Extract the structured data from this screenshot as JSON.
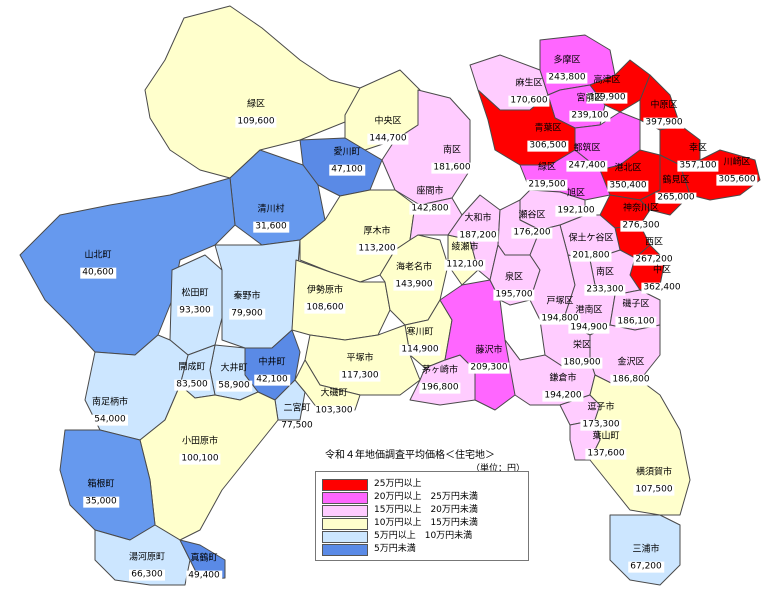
{
  "colors": {
    "over250k": "#ff0000",
    "200to250k": "#ff66ff",
    "150to200k": "#ffccff",
    "100to150k": "#ffffcc",
    "50to100k": "#6699ee",
    "50to100k_light": "#cce6ff",
    "under50k": "#5a8ae6",
    "sea": "#ffffff",
    "border": "#4a4a4a"
  },
  "legend": {
    "title": "令和４年地価調査平均価格＜住宅地＞",
    "unit": "（単位：円）",
    "items": [
      {
        "label": "25万円以上",
        "range": "",
        "color": "#ff0000"
      },
      {
        "label": "20万円以上",
        "range": "25万円未満",
        "color": "#ff66ff"
      },
      {
        "label": "15万円以上",
        "range": "20万円未満",
        "color": "#ffccff"
      },
      {
        "label": "10万円以上",
        "range": "15万円未満",
        "color": "#ffffcc"
      },
      {
        "label": "5万円以上",
        "range": "10万円未満",
        "color": "#cce6ff"
      },
      {
        "label": "5万円未満",
        "range": "",
        "color": "#5a8ae6"
      }
    ]
  },
  "areas": [
    {
      "name": "多摩区",
      "value": "243,800"
    },
    {
      "name": "麻生区",
      "value": "170,600"
    },
    {
      "name": "高津区",
      "value": "329,900"
    },
    {
      "name": "宮前区",
      "value": "239,100"
    },
    {
      "name": "中原区",
      "value": "397,900"
    },
    {
      "name": "青葉区",
      "value": "306,500"
    },
    {
      "name": "都筑区",
      "value": "247,400"
    },
    {
      "name": "幸区",
      "value": "357,100"
    },
    {
      "name": "川崎区",
      "value": "305,600"
    },
    {
      "name": "港北区",
      "value": "350,400"
    },
    {
      "name": "鶴見区",
      "value": "265,000"
    },
    {
      "name": "緑区",
      "value": "219,500"
    },
    {
      "name": "神奈川区",
      "value": "276,300"
    },
    {
      "name": "西区",
      "value": "267,200"
    },
    {
      "name": "中区",
      "value": "362,400"
    },
    {
      "name": "南区",
      "value": "233,300"
    },
    {
      "name": "旭区",
      "value": "192,100"
    },
    {
      "name": "瀬谷区",
      "value": "176,200"
    },
    {
      "name": "保土ケ谷区",
      "value": "201,800"
    },
    {
      "name": "泉区",
      "value": "195,700"
    },
    {
      "name": "戸塚区",
      "value": "194,800"
    },
    {
      "name": "港南区",
      "value": "194,900"
    },
    {
      "name": "磯子区",
      "value": "186,100"
    },
    {
      "name": "栄区",
      "value": "180,900"
    },
    {
      "name": "金沢区",
      "value": "186,800"
    },
    {
      "name": "鎌倉市",
      "value": "194,200"
    },
    {
      "name": "逗子市",
      "value": "173,300"
    },
    {
      "name": "葉山町",
      "value": "137,600"
    },
    {
      "name": "横須賀市",
      "value": "107,500"
    },
    {
      "name": "三浦市",
      "value": "67,200"
    },
    {
      "name": "藤沢市",
      "value": "209,300"
    },
    {
      "name": "茅ヶ崎市",
      "value": "196,800"
    },
    {
      "name": "寒川町",
      "value": "114,900"
    },
    {
      "name": "平塚市",
      "value": "117,300"
    },
    {
      "name": "大磯町",
      "value": "103,300"
    },
    {
      "name": "二宮町",
      "value": "77,500"
    },
    {
      "name": "大和市",
      "value": "187,200"
    },
    {
      "name": "綾瀬市",
      "value": "112,100"
    },
    {
      "name": "海老名市",
      "value": "143,900"
    },
    {
      "name": "座間市",
      "value": "142,800"
    },
    {
      "name": "厚木市",
      "value": "113,200"
    },
    {
      "name": "伊勢原市",
      "value": "108,600"
    },
    {
      "name": "秦野市",
      "value": "79,900"
    },
    {
      "name": "中井町",
      "value": "42,100"
    },
    {
      "name": "大井町",
      "value": "58,900"
    },
    {
      "name": "松田町",
      "value": "93,300"
    },
    {
      "name": "開成町",
      "value": "83,500"
    },
    {
      "name": "山北町",
      "value": "40,600"
    },
    {
      "name": "南足柄市",
      "value": "54,000"
    },
    {
      "name": "小田原市",
      "value": "100,100"
    },
    {
      "name": "箱根町",
      "value": "35,000"
    },
    {
      "name": "湯河原町",
      "value": "66,300"
    },
    {
      "name": "真鶴町",
      "value": "49,400"
    },
    {
      "name": "清川村",
      "value": "31,600"
    },
    {
      "name": "愛川町",
      "value": "47,100"
    },
    {
      "name": "緑区",
      "value": "109,600"
    },
    {
      "name": "中央区",
      "value": "144,700"
    },
    {
      "name": "南区",
      "value": "181,600"
    }
  ]
}
